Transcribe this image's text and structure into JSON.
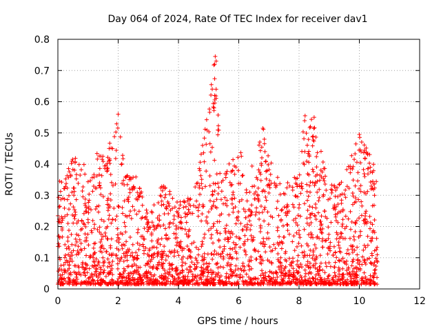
{
  "chart_data": {
    "type": "scatter",
    "title": "Day 064 of 2024, Rate Of TEC Index for receiver dav1",
    "xlabel": "GPS time / hours",
    "ylabel": "ROTI / TECUs",
    "xlim": [
      0,
      12
    ],
    "ylim": [
      0,
      0.8
    ],
    "x_ticks": [
      "0",
      "2",
      "4",
      "6",
      "8",
      "10",
      "12"
    ],
    "y_ticks": [
      "0",
      "0.1",
      "0.2",
      "0.3",
      "0.4",
      "0.5",
      "0.6",
      "0.7",
      "0.8"
    ],
    "x_tick_values": [
      0,
      2,
      4,
      6,
      8,
      10,
      12
    ],
    "y_tick_values": [
      0,
      0.1,
      0.2,
      0.3,
      0.4,
      0.5,
      0.6,
      0.7,
      0.8
    ],
    "grid": true,
    "marker": "+",
    "color": "#ff0000",
    "series": [
      {
        "name": "ROTI",
        "x_range": [
          0,
          10.6
        ],
        "description_of_envelope_hours_to_max_roti": [
          [
            0.0,
            0.38
          ],
          [
            0.2,
            0.33
          ],
          [
            0.5,
            0.45
          ],
          [
            1.0,
            0.38
          ],
          [
            1.3,
            0.44
          ],
          [
            1.6,
            0.43
          ],
          [
            2.0,
            0.56
          ],
          [
            2.3,
            0.37
          ],
          [
            2.6,
            0.36
          ],
          [
            3.0,
            0.25
          ],
          [
            3.5,
            0.34
          ],
          [
            4.0,
            0.28
          ],
          [
            4.5,
            0.3
          ],
          [
            4.8,
            0.46
          ],
          [
            5.2,
            0.75
          ],
          [
            5.5,
            0.37
          ],
          [
            6.0,
            0.46
          ],
          [
            6.3,
            0.38
          ],
          [
            6.8,
            0.52
          ],
          [
            7.0,
            0.43
          ],
          [
            7.5,
            0.32
          ],
          [
            8.0,
            0.42
          ],
          [
            8.2,
            0.56
          ],
          [
            8.5,
            0.55
          ],
          [
            9.0,
            0.33
          ],
          [
            9.5,
            0.37
          ],
          [
            10.0,
            0.5
          ],
          [
            10.5,
            0.4
          ]
        ]
      }
    ]
  }
}
